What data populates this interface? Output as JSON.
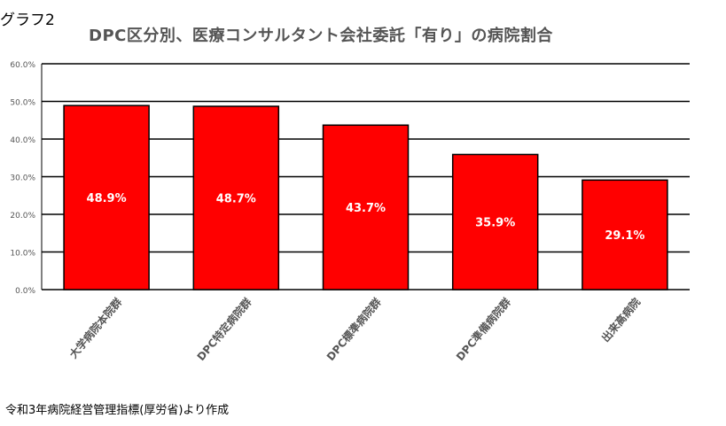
{
  "figure_label": "グラフ2",
  "source_note": "令和3年病院経営管理指標(厚労省)より作成",
  "chart_data": {
    "type": "bar",
    "title": "DPC区分別、医療コンサルタント会社委託「有り」の病院割合",
    "categories": [
      "大学病院本院群",
      "DPC特定病院群",
      "DPC標準病院群",
      "DPC準備病院群",
      "出来高病院"
    ],
    "values": [
      48.9,
      48.7,
      43.7,
      35.9,
      29.1
    ],
    "data_labels": [
      "48.9%",
      "48.7%",
      "43.7%",
      "35.9%",
      "29.1%"
    ],
    "ylim": [
      0,
      60
    ],
    "yticks": [
      0,
      10,
      20,
      30,
      40,
      50,
      60
    ],
    "ytick_labels": [
      "0.0%",
      "10.0%",
      "20.0%",
      "30.0%",
      "40.0%",
      "50.0%",
      "60.0%"
    ],
    "xlabel": "",
    "ylabel": "",
    "grid": true,
    "bar_color": "#ff0000"
  }
}
